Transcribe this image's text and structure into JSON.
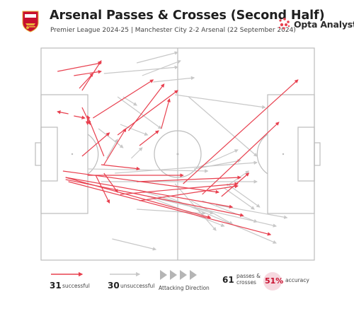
{
  "header": {
    "title": "Arsenal Passes & Crosses (Second Half)",
    "subtitle": "Premier League 2024-25 | Manchester City 2-2 Arsenal (22 September 2024)",
    "brand": "Opta Analyst",
    "crest_text": "Arsenal"
  },
  "colors": {
    "successful": "#e8404f",
    "unsuccessful": "#c8c8c8",
    "pitch_line": "#bcbcbc",
    "accent": "#c8102e"
  },
  "legend": {
    "successful_count": "31",
    "successful_label": "successful",
    "unsuccessful_count": "30",
    "unsuccessful_label": "unsuccessful",
    "direction_label": "Attacking Direction",
    "total_count": "61",
    "total_label_line1": "passes &",
    "total_label_line2": "crosses",
    "accuracy_value": "51%",
    "accuracy_label": "accuracy"
  },
  "chart_data": {
    "type": "pass_map",
    "x_range": [
      0,
      100
    ],
    "y_range": [
      0,
      100
    ],
    "attacking_direction": "left-to-right",
    "successful": [
      [
        6,
        11,
        22,
        7
      ],
      [
        12,
        13,
        22,
        11
      ],
      [
        14,
        19,
        19,
        12
      ],
      [
        15,
        20,
        22,
        6
      ],
      [
        10,
        31,
        6,
        30
      ],
      [
        12,
        32,
        16,
        33
      ],
      [
        15,
        28,
        18,
        36
      ],
      [
        17,
        33,
        17,
        36
      ],
      [
        19,
        33,
        41,
        15
      ],
      [
        32,
        39,
        45,
        17
      ],
      [
        28,
        41,
        50,
        20
      ],
      [
        44,
        38,
        47,
        24
      ],
      [
        36,
        46,
        43,
        39
      ],
      [
        23,
        51,
        17,
        32
      ],
      [
        15,
        51,
        25,
        40
      ],
      [
        22,
        55,
        36,
        57
      ],
      [
        23,
        55,
        31,
        38
      ],
      [
        17,
        60,
        52,
        60
      ],
      [
        8,
        58,
        65,
        68
      ],
      [
        9,
        61,
        70,
        75
      ],
      [
        9,
        62,
        74,
        79
      ],
      [
        10,
        63,
        84,
        88
      ],
      [
        9,
        61,
        62,
        80
      ],
      [
        20,
        60,
        25,
        73
      ],
      [
        35,
        63,
        73,
        61
      ],
      [
        29,
        69,
        72,
        64
      ],
      [
        36,
        72,
        72,
        65
      ],
      [
        52,
        64,
        94,
        15
      ],
      [
        59,
        69,
        87,
        35
      ],
      [
        66,
        70,
        76,
        59
      ],
      [
        23,
        59,
        28,
        68
      ]
    ],
    "unsuccessful": [
      [
        35,
        7,
        50,
        2
      ],
      [
        23,
        12,
        50,
        9
      ],
      [
        37,
        13,
        51,
        6
      ],
      [
        41,
        16,
        56,
        14
      ],
      [
        49,
        22,
        82,
        28
      ],
      [
        54,
        23,
        79,
        51
      ],
      [
        28,
        23,
        44,
        38
      ],
      [
        29,
        36,
        39,
        41
      ],
      [
        30,
        23,
        35,
        27
      ],
      [
        21,
        38,
        30,
        47
      ],
      [
        24,
        52,
        28,
        43
      ],
      [
        33,
        52,
        37,
        47
      ],
      [
        17,
        57,
        61,
        58
      ],
      [
        27,
        59,
        79,
        54
      ],
      [
        22,
        63,
        79,
        63
      ],
      [
        36,
        67,
        63,
        78
      ],
      [
        41,
        71,
        67,
        84
      ],
      [
        55,
        72,
        70,
        83
      ],
      [
        39,
        70,
        86,
        84
      ],
      [
        46,
        70,
        86,
        92
      ],
      [
        59,
        72,
        79,
        82
      ],
      [
        64,
        74,
        90,
        80
      ],
      [
        35,
        76,
        60,
        78
      ],
      [
        26,
        90,
        42,
        95
      ],
      [
        56,
        57,
        73,
        53
      ],
      [
        58,
        56,
        72,
        48
      ],
      [
        68,
        64,
        80,
        75
      ],
      [
        68,
        65,
        76,
        58
      ],
      [
        67,
        66,
        78,
        76
      ],
      [
        49,
        64,
        64,
        86
      ]
    ]
  }
}
